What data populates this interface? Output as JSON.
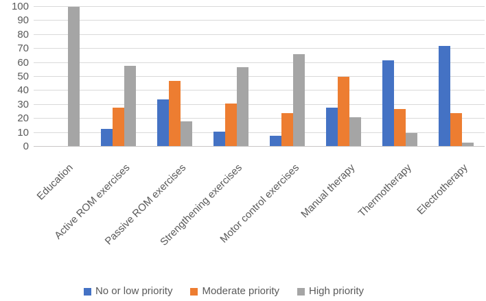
{
  "chart_data": {
    "type": "bar",
    "title": "",
    "xlabel": "",
    "ylabel": "",
    "categories": [
      "Education",
      "Active ROM exercises",
      "Passive ROM exercises",
      "Strengthening exercises",
      "Motor control exercises",
      "Manual therapy",
      "Thermotherapy",
      "Electrotherapy"
    ],
    "series": [
      {
        "name": "No or low priority",
        "color": "#4472C4",
        "values": [
          0,
          13,
          34,
          11,
          8,
          28,
          62,
          72
        ]
      },
      {
        "name": "Moderate priority",
        "color": "#ED7D31",
        "values": [
          0.5,
          28,
          47,
          31,
          24,
          50,
          27,
          24
        ]
      },
      {
        "name": "High priority",
        "color": "#A5A5A5",
        "values": [
          100,
          58,
          18,
          57,
          66,
          21,
          10,
          3
        ]
      }
    ],
    "ylim": [
      0,
      100
    ],
    "yticks": [
      0,
      10,
      20,
      30,
      40,
      50,
      60,
      70,
      80,
      90,
      100
    ],
    "grid": true,
    "x_label_rotation": 45,
    "legend_position": "bottom",
    "colors": {
      "gridline": "#D9D9D9",
      "axis_line": "#C8C6C6",
      "text": "#595959",
      "background": "#FFFFFF"
    }
  }
}
